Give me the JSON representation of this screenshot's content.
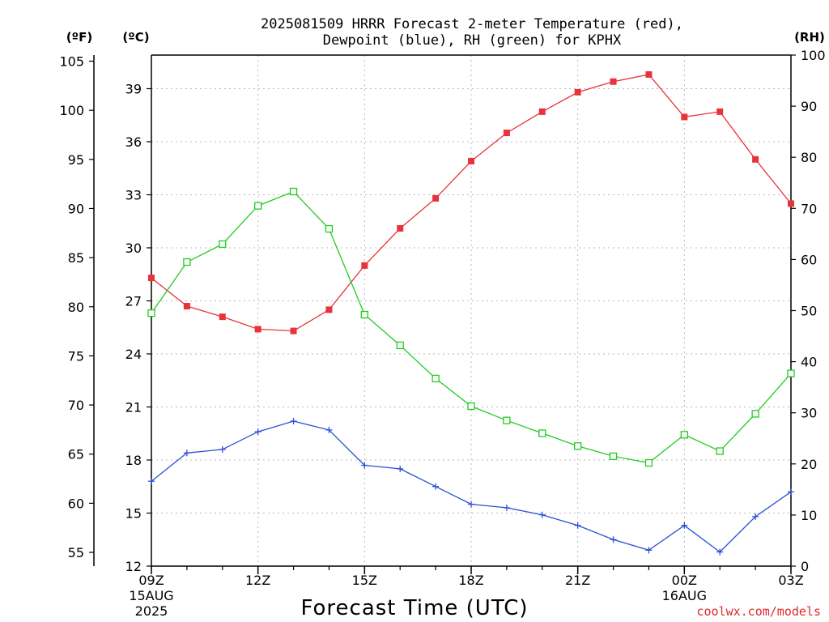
{
  "chart_data": {
    "type": "line",
    "title_line1": "2025081509 HRRR Forecast 2-meter Temperature (red),",
    "title_line2": "Dewpoint (blue), RH (green) for KPHX",
    "xlabel": "Forecast Time (UTC)",
    "credit": "coolwx.com/models",
    "grid": true,
    "colors": {
      "temperature": "#e8333b",
      "dewpoint": "#2a4fd8",
      "rh": "#22cc22"
    },
    "axes": {
      "fahrenheit": {
        "unit_label": "(ºF)",
        "ticks": [
          55,
          60,
          65,
          70,
          75,
          80,
          85,
          90,
          95,
          100,
          105
        ]
      },
      "celsius": {
        "unit_label": "(ºC)",
        "range": [
          12,
          40.9
        ],
        "ticks": [
          12,
          15,
          18,
          21,
          24,
          27,
          30,
          33,
          36,
          39
        ]
      },
      "rh": {
        "unit_label": "(RH)",
        "range": [
          0,
          100
        ],
        "ticks": [
          0,
          10,
          20,
          30,
          40,
          50,
          60,
          70,
          80,
          90,
          100
        ]
      }
    },
    "x_hours": [
      0,
      1,
      2,
      3,
      4,
      5,
      6,
      7,
      8,
      9,
      10,
      11,
      12,
      13,
      14,
      15,
      16,
      17,
      18
    ],
    "x_ticks": [
      {
        "hour": 0,
        "lines": [
          "09Z",
          "15AUG",
          "2025"
        ]
      },
      {
        "hour": 3,
        "lines": [
          "12Z"
        ]
      },
      {
        "hour": 6,
        "lines": [
          "15Z"
        ]
      },
      {
        "hour": 9,
        "lines": [
          "18Z"
        ]
      },
      {
        "hour": 12,
        "lines": [
          "21Z"
        ]
      },
      {
        "hour": 15,
        "lines": [
          "00Z",
          "16AUG"
        ]
      },
      {
        "hour": 18,
        "lines": [
          "03Z"
        ]
      }
    ],
    "series": [
      {
        "key": "temperature",
        "axis": "celsius",
        "marker": "filled-square",
        "values": [
          28.3,
          26.7,
          26.1,
          25.4,
          25.3,
          26.5,
          29.0,
          31.1,
          32.8,
          34.9,
          36.5,
          37.7,
          38.8,
          39.4,
          39.8,
          37.4,
          37.7,
          35.0,
          32.5
        ]
      },
      {
        "key": "dewpoint",
        "axis": "celsius",
        "marker": "plus",
        "values": [
          16.8,
          18.4,
          18.6,
          19.6,
          20.2,
          19.7,
          17.7,
          17.5,
          16.5,
          15.5,
          15.3,
          14.9,
          14.3,
          13.5,
          12.9,
          14.3,
          12.8,
          14.8,
          16.2
        ]
      },
      {
        "key": "rh",
        "axis": "rh",
        "marker": "open-square",
        "values": [
          49.5,
          59.5,
          63.0,
          70.5,
          73.3,
          66.0,
          49.2,
          43.2,
          36.7,
          31.3,
          28.5,
          26.0,
          23.5,
          21.5,
          20.2,
          25.7,
          22.5,
          29.8,
          37.7
        ]
      }
    ]
  }
}
